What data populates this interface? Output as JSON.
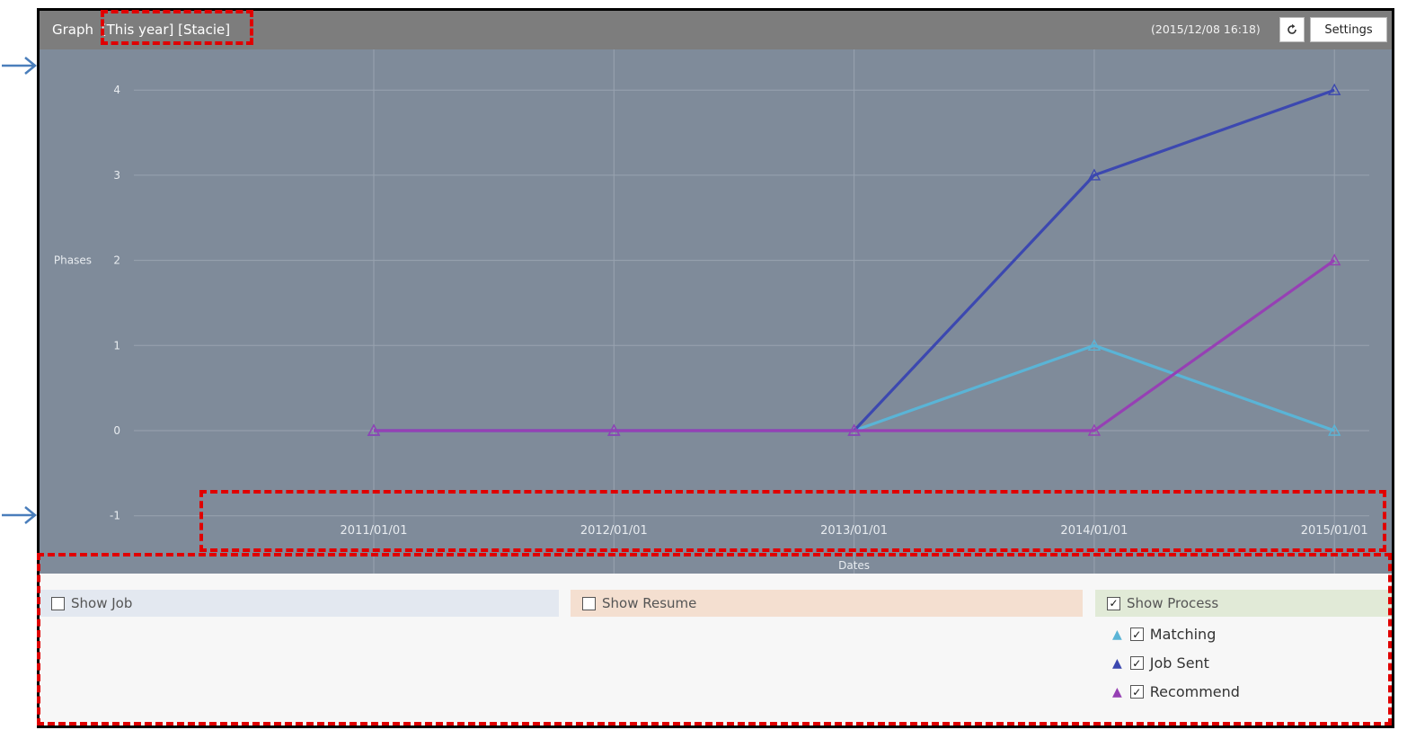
{
  "header": {
    "title": "Graph",
    "selectors": "[This year] [Stacie]",
    "timestamp": "(2015/12/08 16:18)",
    "settings_label": "Settings"
  },
  "chart_data": {
    "type": "line",
    "x": [
      "2011/01/01",
      "2012/01/01",
      "2013/01/01",
      "2014/01/01",
      "2015/01/01"
    ],
    "xlabel": "Dates",
    "ylabel": "Phases",
    "yticks": [
      "-1",
      "0",
      "1",
      "2",
      "3",
      "4"
    ],
    "ylim": [
      -1,
      4.4
    ],
    "grid": true,
    "series": [
      {
        "name": "Matching",
        "color": "#5ab4d6",
        "values": [
          0,
          0,
          0,
          1,
          0
        ]
      },
      {
        "name": "Job Sent",
        "color": "#3c48b0",
        "values": [
          0,
          0,
          0,
          3,
          4
        ]
      },
      {
        "name": "Recommend",
        "color": "#9640b4",
        "values": [
          0,
          0,
          0,
          0,
          2
        ]
      }
    ]
  },
  "legend": {
    "show_job": "Show Job",
    "show_resume": "Show Resume",
    "show_process": "Show Process",
    "items": [
      {
        "label": "Matching",
        "color": "#5ab4d6",
        "marker": "▲",
        "check": "✓"
      },
      {
        "label": "Job Sent",
        "color": "#3c48b0",
        "marker": "▲",
        "check": "✓"
      },
      {
        "label": "Recommend",
        "color": "#9640b4",
        "marker": "▲",
        "check": "✓"
      }
    ],
    "check_mark": "✓"
  },
  "annotations": {
    "color": "#e00000",
    "arrow_color": "#4a7ebb"
  }
}
